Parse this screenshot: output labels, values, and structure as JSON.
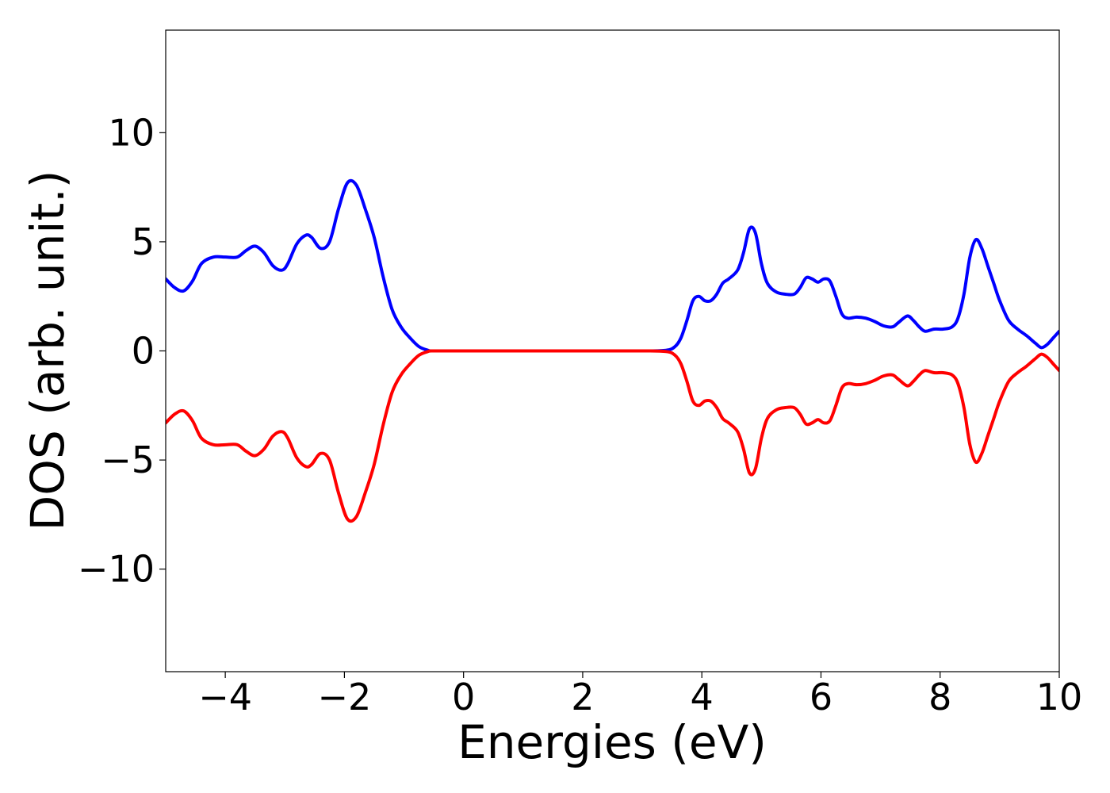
{
  "chart_data": {
    "type": "line",
    "title": "",
    "xlabel": "Energies (eV)",
    "ylabel": "DOS (arb. unit.)",
    "xlim": [
      -5,
      10
    ],
    "ylim": [
      -14.7,
      14.7
    ],
    "xticks": [
      -4,
      -2,
      0,
      2,
      4,
      6,
      8,
      10
    ],
    "xtick_labels": [
      "−4",
      "−2",
      "0",
      "2",
      "4",
      "6",
      "8",
      "10"
    ],
    "yticks": [
      -10,
      -5,
      0,
      5,
      10
    ],
    "ytick_labels": [
      "−10",
      "−5",
      "0",
      "5",
      "10"
    ],
    "grid": false,
    "legend": false,
    "series": [
      {
        "color": "#0000ff",
        "x": [
          -5.0,
          -4.85,
          -4.7,
          -4.55,
          -4.4,
          -4.2,
          -4.0,
          -3.8,
          -3.65,
          -3.5,
          -3.35,
          -3.2,
          -3.05,
          -2.95,
          -2.8,
          -2.65,
          -2.55,
          -2.4,
          -2.25,
          -2.1,
          -1.95,
          -1.8,
          -1.65,
          -1.5,
          -1.35,
          -1.2,
          -1.05,
          -0.9,
          -0.75,
          -0.6,
          -0.5,
          0.0,
          1.0,
          2.0,
          3.0,
          3.4,
          3.55,
          3.65,
          3.75,
          3.85,
          3.95,
          4.05,
          4.15,
          4.25,
          4.35,
          4.45,
          4.6,
          4.7,
          4.8,
          4.9,
          5.0,
          5.1,
          5.25,
          5.4,
          5.55,
          5.65,
          5.75,
          5.85,
          5.95,
          6.05,
          6.15,
          6.25,
          6.35,
          6.45,
          6.6,
          6.75,
          6.9,
          7.05,
          7.2,
          7.3,
          7.45,
          7.55,
          7.65,
          7.75,
          7.9,
          8.05,
          8.2,
          8.3,
          8.4,
          8.5,
          8.6,
          8.7,
          8.8,
          8.9,
          9.0,
          9.15,
          9.3,
          9.45,
          9.6,
          9.7,
          9.8,
          9.9,
          10.0
        ],
        "y": [
          3.3,
          2.9,
          2.75,
          3.2,
          4.0,
          4.3,
          4.3,
          4.3,
          4.6,
          4.8,
          4.5,
          3.9,
          3.7,
          4.0,
          4.9,
          5.3,
          5.2,
          4.7,
          5.0,
          6.5,
          7.7,
          7.6,
          6.5,
          5.2,
          3.4,
          1.9,
          1.1,
          0.6,
          0.2,
          0.03,
          0.0,
          0.0,
          0.0,
          0.0,
          0.0,
          0.03,
          0.2,
          0.6,
          1.4,
          2.3,
          2.5,
          2.3,
          2.3,
          2.6,
          3.1,
          3.3,
          3.7,
          4.5,
          5.6,
          5.4,
          4.0,
          3.1,
          2.7,
          2.6,
          2.6,
          2.9,
          3.35,
          3.3,
          3.15,
          3.3,
          3.2,
          2.5,
          1.7,
          1.5,
          1.55,
          1.5,
          1.35,
          1.15,
          1.1,
          1.3,
          1.6,
          1.4,
          1.1,
          0.9,
          1.0,
          1.0,
          1.1,
          1.5,
          2.6,
          4.3,
          5.1,
          4.7,
          3.9,
          3.1,
          2.3,
          1.4,
          1.0,
          0.7,
          0.35,
          0.15,
          0.3,
          0.6,
          0.9
        ]
      },
      {
        "color": "#ff0000",
        "x": [
          -5.0,
          -4.85,
          -4.7,
          -4.55,
          -4.4,
          -4.2,
          -4.0,
          -3.8,
          -3.65,
          -3.5,
          -3.35,
          -3.2,
          -3.05,
          -2.95,
          -2.8,
          -2.65,
          -2.55,
          -2.4,
          -2.25,
          -2.1,
          -1.95,
          -1.8,
          -1.65,
          -1.5,
          -1.35,
          -1.2,
          -1.05,
          -0.9,
          -0.75,
          -0.6,
          -0.5,
          0.0,
          1.0,
          2.0,
          3.0,
          3.4,
          3.55,
          3.65,
          3.75,
          3.85,
          3.95,
          4.05,
          4.15,
          4.25,
          4.35,
          4.45,
          4.6,
          4.7,
          4.8,
          4.9,
          5.0,
          5.1,
          5.25,
          5.4,
          5.55,
          5.65,
          5.75,
          5.85,
          5.95,
          6.05,
          6.15,
          6.25,
          6.35,
          6.45,
          6.6,
          6.75,
          6.9,
          7.05,
          7.2,
          7.3,
          7.45,
          7.55,
          7.65,
          7.75,
          7.9,
          8.05,
          8.2,
          8.3,
          8.4,
          8.5,
          8.6,
          8.7,
          8.8,
          8.9,
          9.0,
          9.15,
          9.3,
          9.45,
          9.6,
          9.7,
          9.8,
          9.9,
          10.0
        ],
        "y": [
          -3.3,
          -2.9,
          -2.75,
          -3.2,
          -4.0,
          -4.3,
          -4.3,
          -4.3,
          -4.6,
          -4.8,
          -4.5,
          -3.9,
          -3.7,
          -4.0,
          -4.9,
          -5.3,
          -5.2,
          -4.7,
          -5.0,
          -6.5,
          -7.7,
          -7.6,
          -6.5,
          -5.2,
          -3.4,
          -1.9,
          -1.1,
          -0.6,
          -0.2,
          -0.03,
          0.0,
          0.0,
          0.0,
          0.0,
          0.0,
          -0.03,
          -0.2,
          -0.6,
          -1.4,
          -2.3,
          -2.5,
          -2.3,
          -2.3,
          -2.6,
          -3.1,
          -3.3,
          -3.7,
          -4.5,
          -5.6,
          -5.4,
          -4.0,
          -3.1,
          -2.7,
          -2.6,
          -2.6,
          -2.9,
          -3.35,
          -3.3,
          -3.15,
          -3.3,
          -3.2,
          -2.5,
          -1.7,
          -1.5,
          -1.55,
          -1.5,
          -1.35,
          -1.15,
          -1.1,
          -1.3,
          -1.6,
          -1.4,
          -1.1,
          -0.9,
          -1.0,
          -1.0,
          -1.1,
          -1.5,
          -2.6,
          -4.3,
          -5.1,
          -4.7,
          -3.9,
          -3.1,
          -2.3,
          -1.4,
          -1.0,
          -0.7,
          -0.35,
          -0.15,
          -0.3,
          -0.6,
          -0.9
        ]
      }
    ]
  }
}
